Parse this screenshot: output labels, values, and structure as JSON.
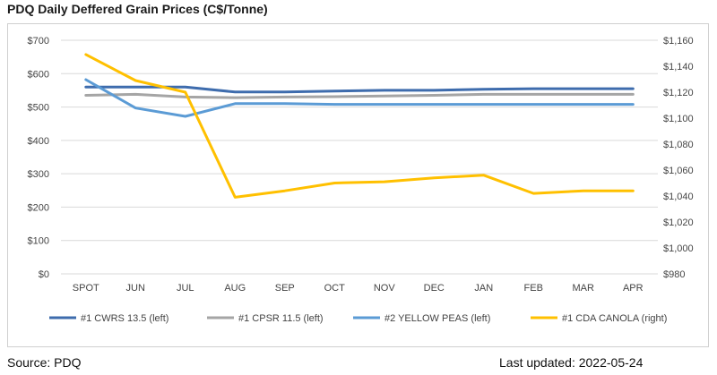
{
  "title": "PDQ Daily Deffered Grain Prices (C$/Tonne)",
  "footer": {
    "source": "Source: PDQ",
    "updated": "Last updated: 2022-05-24"
  },
  "chart_data": {
    "type": "line",
    "categories": [
      "SPOT",
      "JUN",
      "JUL",
      "AUG",
      "SEP",
      "OCT",
      "NOV",
      "DEC",
      "JAN",
      "FEB",
      "MAR",
      "APR"
    ],
    "y_left": {
      "ylim": [
        0,
        700
      ],
      "ticks": [
        0,
        100,
        200,
        300,
        400,
        500,
        600,
        700
      ],
      "tick_labels": [
        "$0",
        "$100",
        "$200",
        "$300",
        "$400",
        "$500",
        "$600",
        "$700"
      ]
    },
    "y_right": {
      "ylim": [
        980,
        1160
      ],
      "ticks": [
        980,
        1000,
        1020,
        1040,
        1060,
        1080,
        1100,
        1120,
        1140,
        1160
      ],
      "tick_labels": [
        "$980",
        "$1,000",
        "$1,020",
        "$1,040",
        "$1,060",
        "$1,080",
        "$1,100",
        "$1,120",
        "$1,140",
        "$1,160"
      ]
    },
    "grid": true,
    "legend_position": "bottom",
    "series": [
      {
        "name": "#1 CWRS 13.5 (left)",
        "axis": "left",
        "color": "#3e6cad",
        "values": [
          560,
          560,
          560,
          545,
          545,
          548,
          550,
          550,
          553,
          555,
          555,
          555
        ]
      },
      {
        "name": "#1 CPSR 11.5 (left)",
        "axis": "left",
        "color": "#a5a5a5",
        "values": [
          535,
          538,
          530,
          528,
          530,
          531,
          533,
          535,
          538,
          538,
          538,
          538
        ]
      },
      {
        "name": "#2 YELLOW PEAS (left)",
        "axis": "left",
        "color": "#5b9bd5",
        "values": [
          582,
          497,
          472,
          510,
          510,
          508,
          508,
          508,
          508,
          508,
          508,
          508
        ]
      },
      {
        "name": "#1 CDA CANOLA (right)",
        "axis": "right",
        "color": "#ffc000",
        "values": [
          1149,
          1129,
          1120,
          1039,
          1044,
          1050,
          1051,
          1054,
          1056,
          1042,
          1044,
          1044
        ]
      }
    ]
  }
}
